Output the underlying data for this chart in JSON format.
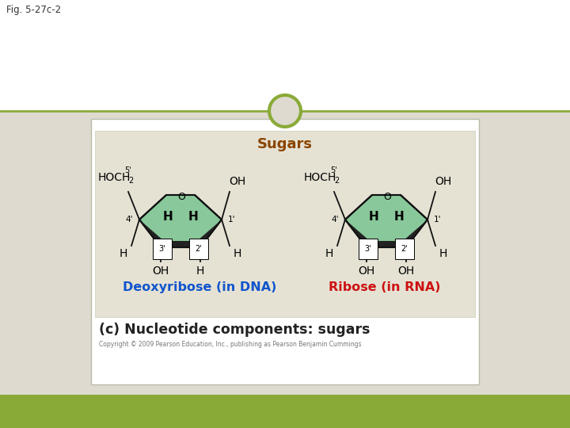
{
  "fig_label": "Fig. 5-27c-2",
  "bg_outer": "#dedad0",
  "bg_inner_box": "#e5e2d4",
  "white_top": "#ffffff",
  "green_stripe": "#8aaa38",
  "circle_color": "#8aaa38",
  "title_text": "Sugars",
  "title_color": "#8B4500",
  "label_left": "Deoxyribose (in DNA)",
  "label_left_color": "#1155cc",
  "label_right": "Ribose (in RNA)",
  "label_right_color": "#cc1111",
  "caption_text": "(c) Nucleotide components: sugars",
  "caption_color": "#222222",
  "copyright_text": "Copyright © 2009 Pearson Education, Inc., publishing as Pearson Benjamin Cummings",
  "white_box": "#ffffff",
  "pentagon_fill": "#88c89a",
  "pentagon_bottom_fill": "#222222",
  "line_color": "#111111"
}
